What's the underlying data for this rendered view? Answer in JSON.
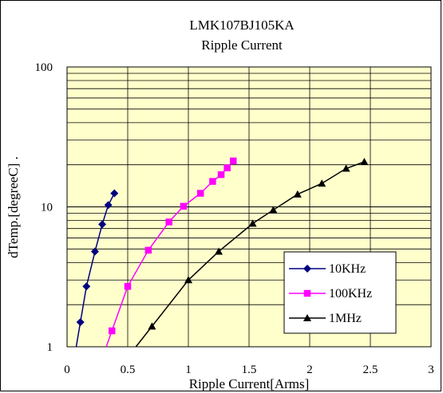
{
  "chart_data": {
    "type": "line",
    "title": "LMK107BJ105KA",
    "subtitle": "Ripple Current",
    "xlabel": "Ripple Current[Arms]",
    "ylabel": "dTemp.[degreeC] .",
    "xlim": [
      0,
      3
    ],
    "ylim": [
      1,
      100
    ],
    "yscale": "log",
    "x_ticks": [
      "0",
      "0.5",
      "1",
      "1.5",
      "2",
      "2.5",
      "3"
    ],
    "y_ticks": [
      "1",
      "10",
      "100"
    ],
    "grid": true,
    "legend_position": "bottom-right",
    "plot_background": "#ffffcc",
    "series": [
      {
        "name": "10KHz",
        "color": "#000080",
        "marker": "diamond",
        "x": [
          0.11,
          0.16,
          0.23,
          0.29,
          0.34,
          0.39
        ],
        "y": [
          1.5,
          2.7,
          4.8,
          7.5,
          10.3,
          12.5
        ]
      },
      {
        "name": "100KHz",
        "color": "#ff00ff",
        "marker": "square",
        "x": [
          0.37,
          0.5,
          0.67,
          0.84,
          0.96,
          1.1,
          1.2,
          1.27,
          1.32,
          1.37
        ],
        "y": [
          1.3,
          2.7,
          4.9,
          7.8,
          10.1,
          12.5,
          15.2,
          17.0,
          19.0,
          21.3
        ]
      },
      {
        "name": "1MHz",
        "color": "#000000",
        "marker": "triangle",
        "x": [
          0.7,
          1.0,
          1.25,
          1.53,
          1.7,
          1.9,
          2.1,
          2.3,
          2.45
        ],
        "y": [
          1.4,
          3.0,
          4.8,
          7.6,
          9.5,
          12.3,
          14.7,
          18.8,
          21.0
        ]
      }
    ]
  }
}
